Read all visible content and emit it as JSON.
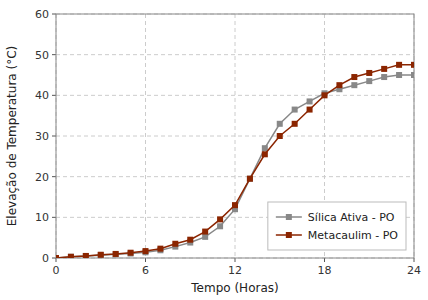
{
  "chart_data": {
    "type": "line",
    "x": [
      0,
      1,
      2,
      3,
      4,
      5,
      6,
      7,
      8,
      9,
      10,
      11,
      12,
      13,
      14,
      15,
      16,
      17,
      18,
      19,
      20,
      21,
      22,
      23,
      24
    ],
    "series": [
      {
        "name": "Sílica Ativa - PO",
        "color": "#888888",
        "values": [
          0,
          0.3,
          0.5,
          0.7,
          0.9,
          1.1,
          1.4,
          1.9,
          2.8,
          3.8,
          5.2,
          7.8,
          12.0,
          19.5,
          27.0,
          33.0,
          36.5,
          38.5,
          40.5,
          41.5,
          42.5,
          43.5,
          44.5,
          45.0,
          45.0
        ]
      },
      {
        "name": "Metacaulim - PO",
        "color": "#8B2500",
        "values": [
          0,
          0.3,
          0.5,
          0.8,
          1.0,
          1.3,
          1.7,
          2.3,
          3.5,
          4.5,
          6.5,
          9.5,
          13.0,
          19.5,
          25.5,
          30.0,
          33.0,
          36.5,
          40.0,
          42.5,
          44.5,
          45.5,
          46.5,
          47.5,
          47.5
        ]
      }
    ],
    "xlabel": "Tempo (Horas)",
    "ylabel": "Elevação de Temperatura (°C)",
    "xlim": [
      0,
      24
    ],
    "ylim": [
      0,
      60
    ],
    "xticks": [
      0,
      6,
      12,
      18,
      24
    ],
    "yticks": [
      0,
      10,
      20,
      30,
      40,
      50,
      60
    ],
    "grid": true,
    "legend": "lower right",
    "marker": "square"
  }
}
